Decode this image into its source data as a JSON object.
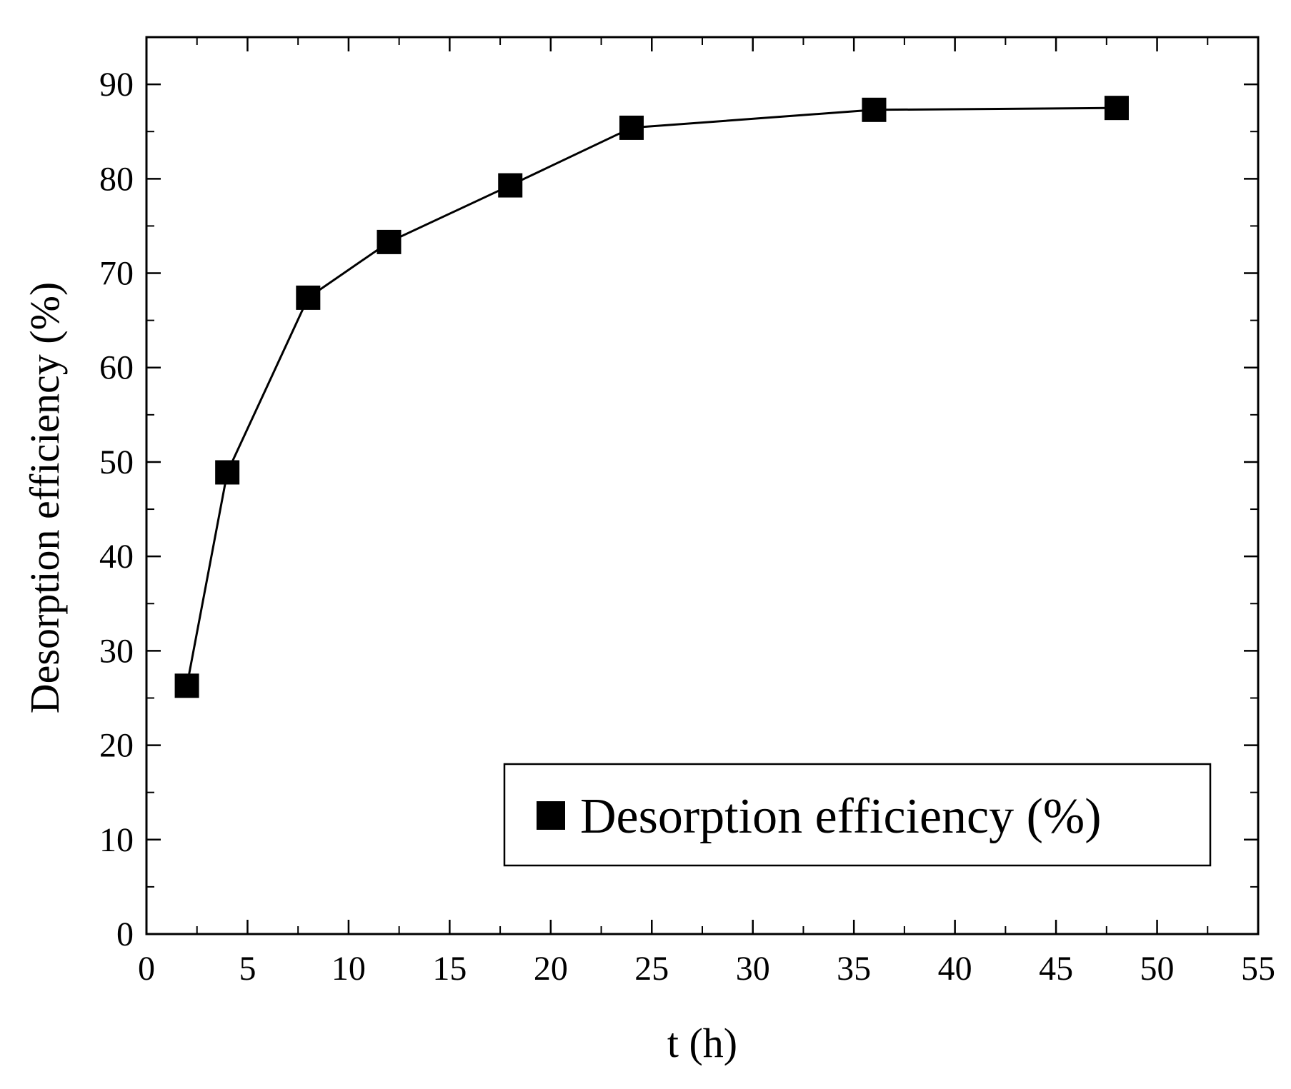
{
  "chart_data": {
    "type": "line",
    "xlabel": "t (h)",
    "ylabel": "Desorption efficiency (%)",
    "xlim": [
      0,
      55
    ],
    "ylim": [
      0,
      95
    ],
    "x_ticks": [
      0,
      5,
      10,
      15,
      20,
      25,
      30,
      35,
      40,
      45,
      50,
      55
    ],
    "y_ticks": [
      0,
      10,
      20,
      30,
      40,
      50,
      60,
      70,
      80,
      90
    ],
    "x_tick_labels": [
      "0",
      "5",
      "10",
      "15",
      "20",
      "25",
      "30",
      "35",
      "40",
      "45",
      "50",
      "55"
    ],
    "y_tick_labels": [
      "0",
      "10",
      "20",
      "30",
      "40",
      "50",
      "60",
      "70",
      "80",
      "90"
    ],
    "grid": false,
    "legend_position": "bottom-right",
    "series": [
      {
        "name": "Desorption efficiency (%)",
        "marker": "square",
        "color": "#000000",
        "x": [
          2,
          4,
          8,
          12,
          18,
          24,
          36,
          48
        ],
        "y": [
          26.3,
          48.9,
          67.4,
          73.3,
          79.3,
          85.4,
          87.3,
          87.5
        ]
      }
    ]
  }
}
